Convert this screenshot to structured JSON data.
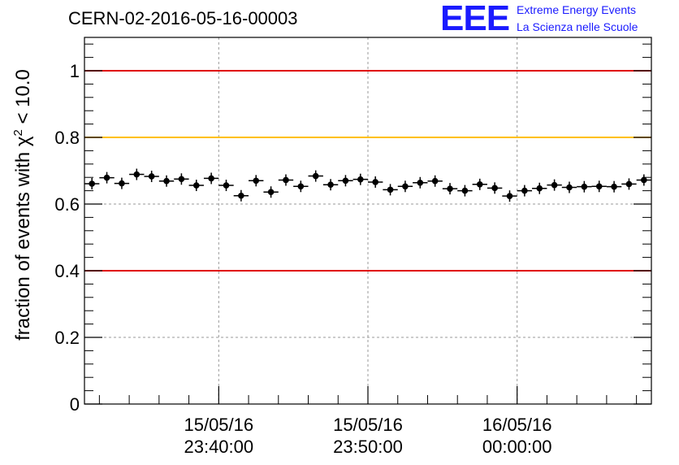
{
  "header": {
    "run_title": "CERN-02-2016-05-16-00003",
    "logo": {
      "mark": "EEE",
      "line1": "Extreme Energy Events",
      "line2": "La Scienza nelle Scuole",
      "color": "#1a1aff"
    }
  },
  "chart_data": {
    "type": "scatter",
    "title": "",
    "ylabel": "fraction of events with χ² < 10.0",
    "ylabel_parts": {
      "prefix": "fraction of events with ",
      "symbol": "χ",
      "superscript": "2",
      "suffix": " < 10.0"
    },
    "xlabel": "",
    "ylim": [
      0,
      1.1
    ],
    "xlim": [
      "2016-05-15 23:31:00",
      "2016-05-16 00:09:00"
    ],
    "x_ticks": [
      {
        "value": "2016-05-15 23:40:00",
        "date": "15/05/16",
        "time": "23:40:00"
      },
      {
        "value": "2016-05-15 23:50:00",
        "date": "15/05/16",
        "time": "23:50:00"
      },
      {
        "value": "2016-05-16 00:00:00",
        "date": "16/05/16",
        "time": "00:00:00"
      }
    ],
    "y_ticks": [
      "0",
      "0.2",
      "0.4",
      "0.6",
      "0.8",
      "1"
    ],
    "grid": true,
    "reference_lines": [
      {
        "y": 1.0,
        "color": "#e00000"
      },
      {
        "y": 0.8,
        "color": "#ffc000"
      },
      {
        "y": 0.4,
        "color": "#e00000"
      }
    ],
    "marker_color": "#000000",
    "points": [
      {
        "x": "2016-05-15 23:31:30",
        "y": 0.661
      },
      {
        "x": "2016-05-15 23:32:30",
        "y": 0.679
      },
      {
        "x": "2016-05-15 23:33:30",
        "y": 0.662
      },
      {
        "x": "2016-05-15 23:34:30",
        "y": 0.689
      },
      {
        "x": "2016-05-15 23:35:30",
        "y": 0.683
      },
      {
        "x": "2016-05-15 23:36:30",
        "y": 0.669
      },
      {
        "x": "2016-05-15 23:37:30",
        "y": 0.675
      },
      {
        "x": "2016-05-15 23:38:30",
        "y": 0.656
      },
      {
        "x": "2016-05-15 23:39:30",
        "y": 0.677
      },
      {
        "x": "2016-05-15 23:40:30",
        "y": 0.656
      },
      {
        "x": "2016-05-15 23:41:30",
        "y": 0.625
      },
      {
        "x": "2016-05-15 23:42:30",
        "y": 0.67
      },
      {
        "x": "2016-05-15 23:43:30",
        "y": 0.636
      },
      {
        "x": "2016-05-15 23:44:30",
        "y": 0.672
      },
      {
        "x": "2016-05-15 23:45:30",
        "y": 0.653
      },
      {
        "x": "2016-05-15 23:46:30",
        "y": 0.684
      },
      {
        "x": "2016-05-15 23:47:30",
        "y": 0.658
      },
      {
        "x": "2016-05-15 23:48:30",
        "y": 0.67
      },
      {
        "x": "2016-05-15 23:49:30",
        "y": 0.674
      },
      {
        "x": "2016-05-15 23:50:30",
        "y": 0.666
      },
      {
        "x": "2016-05-15 23:51:30",
        "y": 0.643
      },
      {
        "x": "2016-05-15 23:52:30",
        "y": 0.653
      },
      {
        "x": "2016-05-15 23:53:30",
        "y": 0.664
      },
      {
        "x": "2016-05-15 23:54:30",
        "y": 0.669
      },
      {
        "x": "2016-05-15 23:55:30",
        "y": 0.646
      },
      {
        "x": "2016-05-15 23:56:30",
        "y": 0.64
      },
      {
        "x": "2016-05-15 23:57:30",
        "y": 0.659
      },
      {
        "x": "2016-05-15 23:58:30",
        "y": 0.648
      },
      {
        "x": "2016-05-15 23:59:30",
        "y": 0.624
      },
      {
        "x": "2016-05-16 00:00:30",
        "y": 0.64
      },
      {
        "x": "2016-05-16 00:01:30",
        "y": 0.647
      },
      {
        "x": "2016-05-16 00:02:30",
        "y": 0.657
      },
      {
        "x": "2016-05-16 00:03:30",
        "y": 0.65
      },
      {
        "x": "2016-05-16 00:04:30",
        "y": 0.652
      },
      {
        "x": "2016-05-16 00:05:30",
        "y": 0.653
      },
      {
        "x": "2016-05-16 00:06:30",
        "y": 0.652
      },
      {
        "x": "2016-05-16 00:07:30",
        "y": 0.66
      },
      {
        "x": "2016-05-16 00:08:30",
        "y": 0.672
      }
    ]
  }
}
